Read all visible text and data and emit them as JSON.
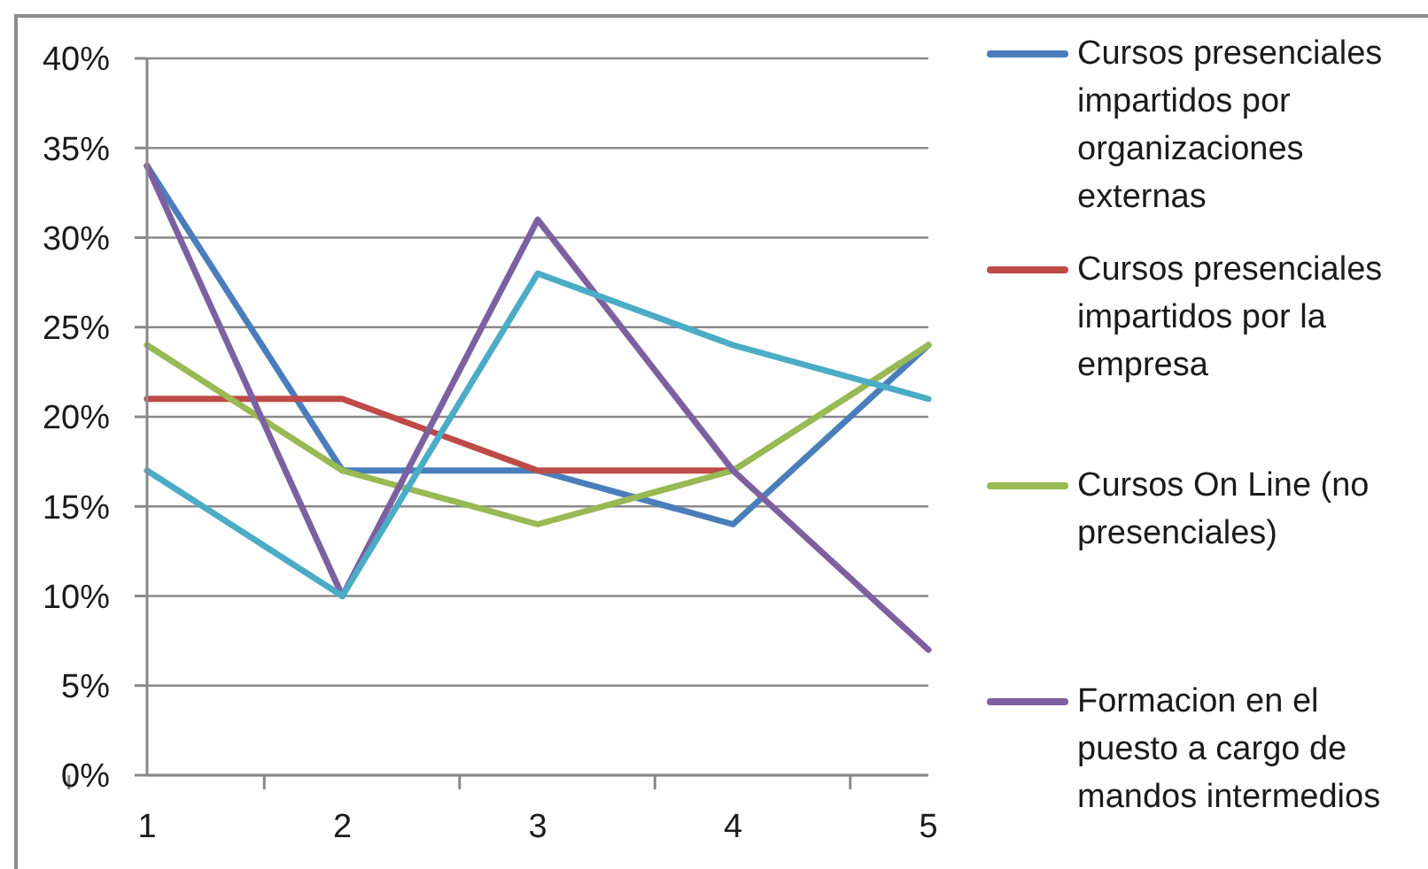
{
  "chart_data": {
    "type": "line",
    "categories": [
      "1",
      "2",
      "3",
      "4",
      "5"
    ],
    "series": [
      {
        "name": "Cursos presenciales impartidos por organizaciones externas",
        "color": "#4a7ebb",
        "values": [
          34,
          17,
          17,
          14,
          24
        ]
      },
      {
        "name": "Cursos presenciales impartidos por la empresa",
        "color": "#be4b48",
        "values": [
          21,
          21,
          17,
          17,
          null
        ]
      },
      {
        "name": "Cursos On Line (no presenciales)",
        "color": "#98b954",
        "values": [
          24,
          17,
          14,
          17,
          24
        ]
      },
      {
        "name": "Formacion en el puesto a cargo de mandos intermedios",
        "color": "#7d60a0",
        "values": [
          34,
          10,
          31,
          17,
          7
        ]
      },
      {
        "color": "#4bacc6",
        "values": [
          17,
          10,
          28,
          24,
          21
        ]
      }
    ],
    "ylim": [
      0,
      40
    ],
    "yticks": [
      {
        "value": 0,
        "label": "0%"
      },
      {
        "value": 5,
        "label": "5%"
      },
      {
        "value": 10,
        "label": "10%"
      },
      {
        "value": 15,
        "label": "15%"
      },
      {
        "value": 20,
        "label": "20%"
      },
      {
        "value": 25,
        "label": "25%"
      },
      {
        "value": 30,
        "label": "30%"
      },
      {
        "value": 35,
        "label": "35%"
      },
      {
        "value": 40,
        "label": "40%"
      }
    ],
    "grid": "y",
    "legend": "right",
    "marker": "none",
    "line_style": "solid"
  }
}
